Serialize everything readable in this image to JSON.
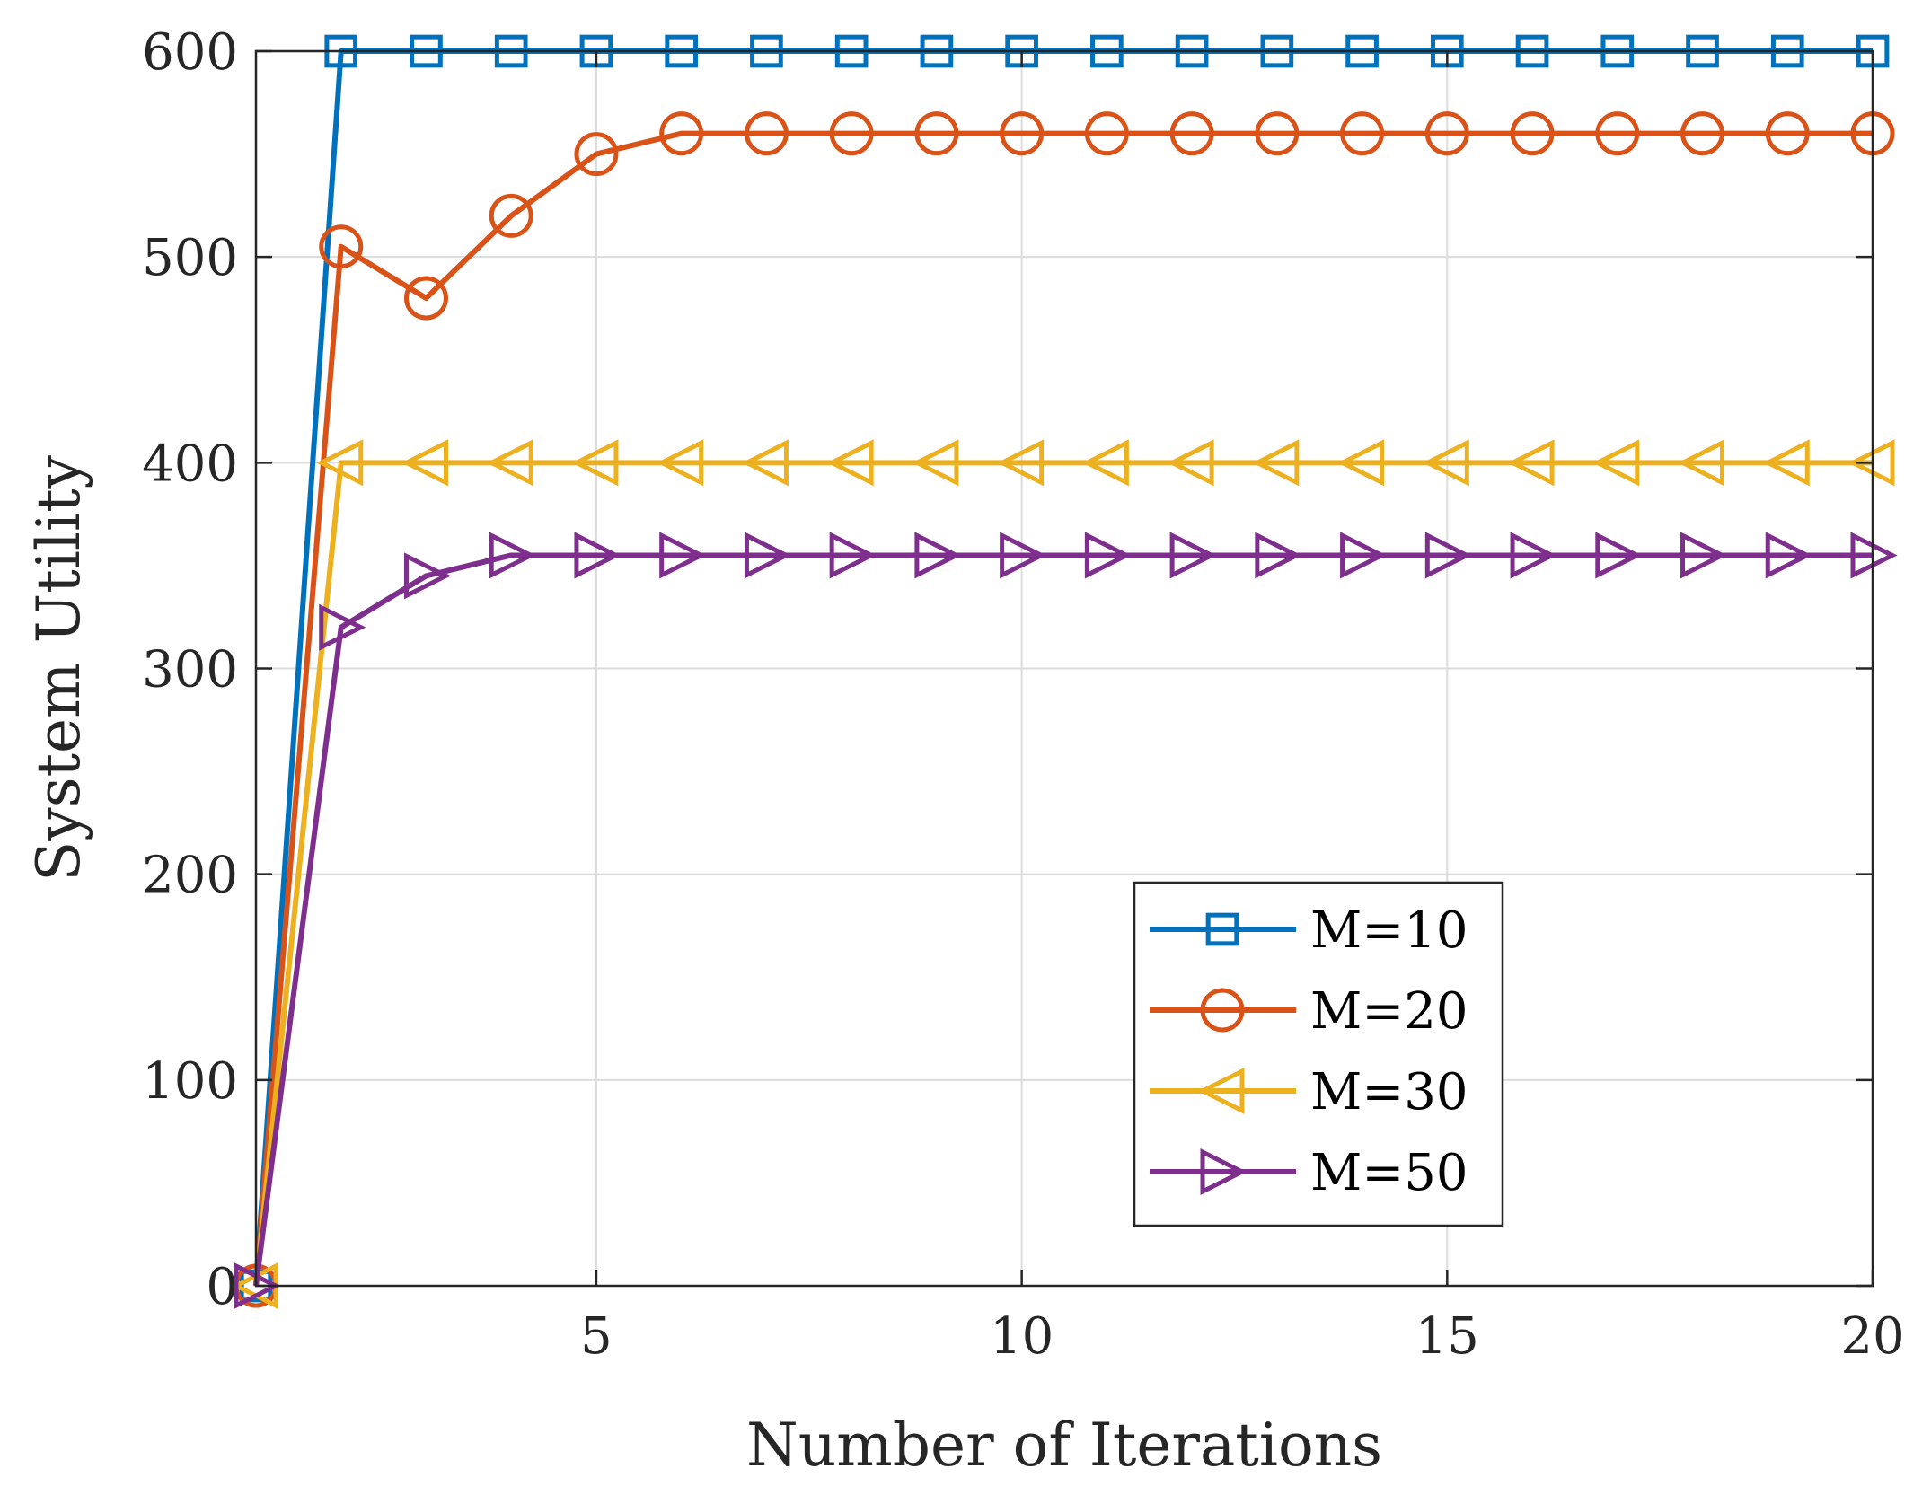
{
  "chart_data": {
    "type": "line",
    "title": "",
    "xlabel": "Number of Iterations",
    "ylabel": "System Utility",
    "xlim": [
      1,
      20
    ],
    "ylim": [
      0,
      600
    ],
    "xticks": [
      5,
      10,
      15,
      20
    ],
    "yticks": [
      0,
      100,
      200,
      300,
      400,
      500,
      600
    ],
    "xtick_labels": [
      "5",
      "10",
      "15",
      "20"
    ],
    "ytick_labels": [
      "0",
      "100",
      "200",
      "300",
      "400",
      "500",
      "600"
    ],
    "grid": true,
    "legend_position": "lower-right",
    "x": [
      1,
      2,
      3,
      4,
      5,
      6,
      7,
      8,
      9,
      10,
      11,
      12,
      13,
      14,
      15,
      16,
      17,
      18,
      19,
      20
    ],
    "series": [
      {
        "name": "M=10",
        "color": "#0072BD",
        "marker": "square",
        "values": [
          0,
          600,
          600,
          600,
          600,
          600,
          600,
          600,
          600,
          600,
          600,
          600,
          600,
          600,
          600,
          600,
          600,
          600,
          600,
          600
        ]
      },
      {
        "name": "M=20",
        "color": "#D95319",
        "marker": "circle",
        "values": [
          0,
          505,
          480,
          520,
          550,
          560,
          560,
          560,
          560,
          560,
          560,
          560,
          560,
          560,
          560,
          560,
          560,
          560,
          560,
          560
        ]
      },
      {
        "name": "M=30",
        "color": "#EDB120",
        "marker": "triangle-left",
        "values": [
          0,
          400,
          400,
          400,
          400,
          400,
          400,
          400,
          400,
          400,
          400,
          400,
          400,
          400,
          400,
          400,
          400,
          400,
          400,
          400
        ]
      },
      {
        "name": "M=50",
        "color": "#7E2F8E",
        "marker": "triangle-right",
        "values": [
          0,
          320,
          345,
          355,
          355,
          355,
          355,
          355,
          355,
          355,
          355,
          355,
          355,
          355,
          355,
          355,
          355,
          355,
          355,
          355
        ]
      }
    ]
  }
}
